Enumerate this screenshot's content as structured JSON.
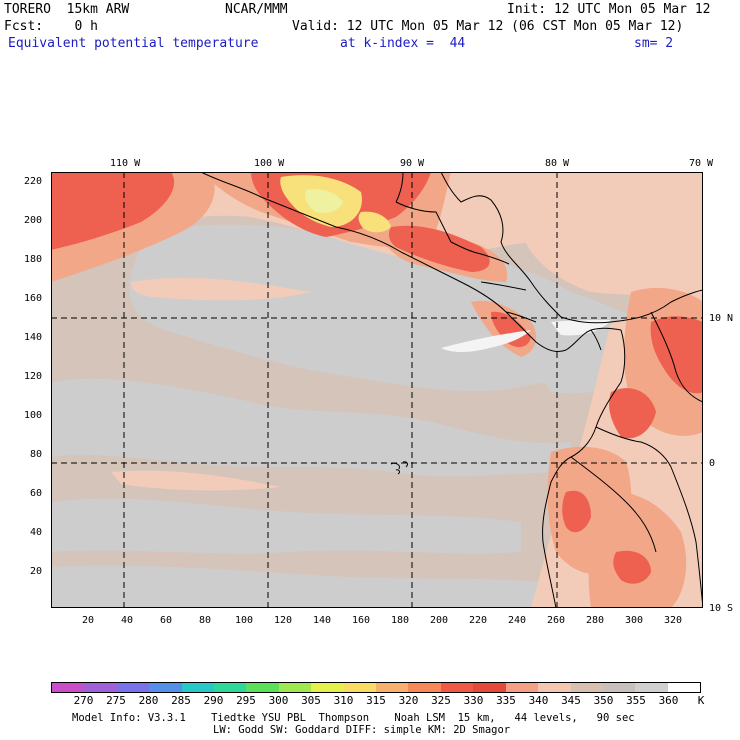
{
  "header": {
    "line1_left": "TORERO  15km ARW",
    "line1_center": "NCAR/MMM",
    "line1_right": "Init: 12 UTC Mon 05 Mar 12",
    "line2_left": "Fcst:    0 h",
    "line2_right": "Valid: 12 UTC Mon 05 Mar 12 (06 CST Mon 05 Mar 12)",
    "line3_field": "Equivalent potential temperature",
    "line3_level": "at k-index =  44",
    "line3_smooth": "sm= 2"
  },
  "map": {
    "top_lon_labels": [
      "110 W",
      "100 W",
      "90 W",
      "80 W",
      "70 W"
    ],
    "right_lat_labels": [
      "10 N",
      "0",
      "10 S"
    ],
    "left_grid_labels": [
      "220",
      "200",
      "180",
      "160",
      "140",
      "120",
      "100",
      "80",
      "60",
      "40",
      "20"
    ],
    "bottom_grid_labels": [
      "20",
      "40",
      "60",
      "80",
      "100",
      "120",
      "140",
      "160",
      "180",
      "200",
      "220",
      "240",
      "260",
      "280",
      "300",
      "320"
    ]
  },
  "colorbar": {
    "colors": [
      "#c84fc8",
      "#a060d8",
      "#7a72e8",
      "#5590e8",
      "#28c8c8",
      "#2ed89a",
      "#5ce05c",
      "#a0e850",
      "#e6f04a",
      "#f8dc64",
      "#f8b070",
      "#f8885a",
      "#f05a44",
      "#e84838",
      "#f4a084",
      "#f4c8b0",
      "#d8c0b0",
      "#c8c0bc",
      "#d0d0d0",
      "#ffffff"
    ],
    "labels": [
      "270",
      "275",
      "280",
      "285",
      "290",
      "295",
      "300",
      "305",
      "310",
      "315",
      "320",
      "325",
      "330",
      "335",
      "340",
      "345",
      "350",
      "355",
      "360",
      "K"
    ]
  },
  "footer": {
    "line1": "Model Info: V3.3.1    Tiedtke YSU PBL  Thompson    Noah LSM  15 km,   44 levels,   90 sec",
    "line2": "LW: Godd SW: Goddard DIFF: simple KM: 2D Smagor"
  },
  "fill_colors": {
    "base": "#d4c4ba",
    "grey": "#cdcdcd",
    "light": "#f2ccb8",
    "salmon": "#f2a888",
    "red": "#ee6050",
    "hot": "#f8e07a",
    "white": "#f4f4f4"
  }
}
